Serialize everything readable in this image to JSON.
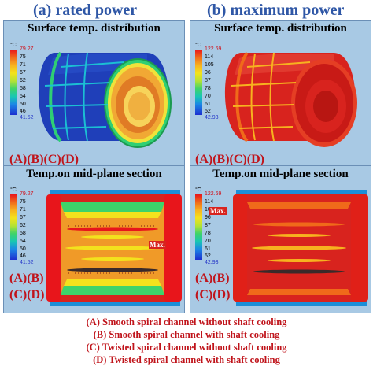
{
  "titles": {
    "left": "(a) rated power",
    "right": "(b) maximum power"
  },
  "panels": {
    "surface_title": "Surface temp. distribution",
    "section_title": "Temp.on mid-plane section",
    "unit": "°C"
  },
  "legend_rated": {
    "max": "79.27",
    "ticks": [
      "75",
      "71",
      "67",
      "62",
      "58",
      "54",
      "50",
      "46"
    ],
    "min": "41.52"
  },
  "legend_max": {
    "max": "122.69",
    "ticks": [
      "114",
      "105",
      "96",
      "87",
      "78",
      "70",
      "61",
      "52"
    ],
    "min": "42.93"
  },
  "tags": {
    "abcd": "(A)(B)(C)(D)",
    "ab": "(A)(B)",
    "cd": "(C)(D)",
    "max_marker": "Max."
  },
  "captions": [
    "(A) Smooth spiral channel without shaft cooling",
    "(B) Smooth spiral channel with shaft cooling",
    "(C) Twisted spiral channel without shaft cooling",
    "(D) Twisted spiral channel with shaft cooling"
  ],
  "colors": {
    "title_blue": "#2f57a6",
    "caption_red": "#c0141b",
    "panel_bg": "#a8c9e4",
    "hot_red": "#d8231e",
    "cool_blue": "#1f3fb9"
  }
}
